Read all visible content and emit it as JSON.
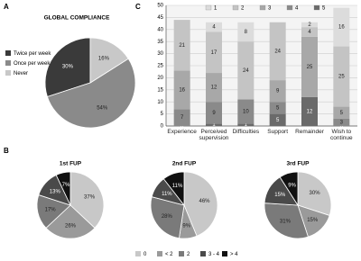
{
  "panel_labels": [
    "A",
    "B",
    "C"
  ],
  "chart_data": [
    {
      "type": "pie",
      "title": "GLOBAL COMPLIANCE",
      "counterclockwise": true,
      "labels": [
        "Twice per week",
        "Once per week",
        "Never"
      ],
      "colors": [
        "#3a3a3a",
        "#8a8a8a",
        "#c8c8c8"
      ],
      "values": [
        30,
        54,
        16
      ],
      "value_labels": [
        "30%",
        "54%",
        "16%"
      ]
    },
    {
      "type": "stacked_bar",
      "categories": [
        "Experience",
        "Perceived supervision",
        "Difficulties",
        "Support",
        "Remainder",
        "Wish to continue"
      ],
      "series": [
        {
          "name": "1",
          "color": "#dcdcdc",
          "values": [
            null,
            4,
            8,
            null,
            2,
            16
          ]
        },
        {
          "name": "2",
          "color": "#c4c4c4",
          "values": [
            21,
            17,
            24,
            24,
            4,
            25
          ]
        },
        {
          "name": "3",
          "color": "#a8a8a8",
          "values": [
            16,
            12,
            null,
            9,
            25,
            5
          ]
        },
        {
          "name": "4",
          "color": "#8a8a8a",
          "values": [
            7,
            9,
            10,
            5,
            null,
            3
          ]
        },
        {
          "name": "5",
          "color": "#6a6a6a",
          "values": [
            0,
            1,
            1,
            5,
            12,
            0
          ]
        }
      ],
      "ylim": [
        0,
        50
      ],
      "yticks": [
        0,
        5,
        10,
        15,
        20,
        25,
        30,
        35,
        40,
        45,
        50
      ],
      "grid": true
    },
    {
      "type": "pie",
      "title": "1st FUP",
      "values": [
        37,
        26,
        17,
        13,
        7
      ],
      "value_labels": [
        "37%",
        "26%",
        "17%",
        "13%",
        "7%"
      ]
    },
    {
      "type": "pie",
      "title": "2nd FUP",
      "values": [
        46,
        9,
        28,
        11,
        11
      ],
      "value_labels": [
        "46%",
        "9%",
        "28%",
        "11%",
        "11%"
      ]
    },
    {
      "type": "pie",
      "title": "3rd FUP",
      "values": [
        30,
        15,
        31,
        15,
        9
      ],
      "value_labels": [
        "30%",
        "15%",
        "31%",
        "15%",
        "9%"
      ]
    }
  ],
  "legend_b": {
    "labels": [
      "0",
      "< 2",
      "2",
      "3 - 4",
      "> 4"
    ],
    "colors": [
      "#c8c8c8",
      "#9a9a9a",
      "#7a7a7a",
      "#4a4a4a",
      "#111111"
    ]
  }
}
